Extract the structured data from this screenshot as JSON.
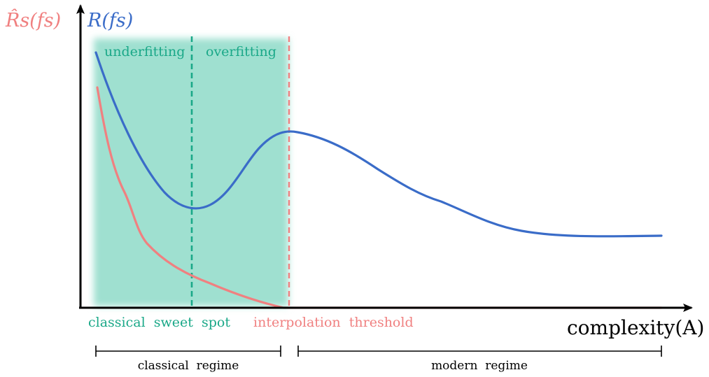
{
  "axes": {
    "y_label_empirical": "R̂s(fs)",
    "y_label_true": "R(fs)",
    "x_label": "complexity(A)"
  },
  "regions": {
    "underfitting": "underfitting",
    "overfitting": "overfitting",
    "sweet_spot": "classical  sweet  spot",
    "threshold": "interpolation  threshold"
  },
  "regimes": {
    "classical": "classical  regime",
    "modern": "modern  regime"
  },
  "colors": {
    "true_risk": "#3a6cc8",
    "empirical_risk": "#f08080",
    "sweet_spot": "#1aa888",
    "shade": "#9fe0d0",
    "axis": "#000000"
  }
}
